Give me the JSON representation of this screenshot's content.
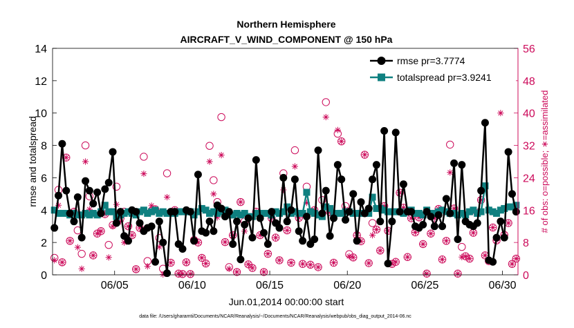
{
  "chart_data": {
    "type": "line",
    "title": "Northern Hemisphere",
    "subtitle": "AIRCRAFT_V_WIND_COMPONENT @ 150 hPa",
    "xlabel": "Jun.01,2014 00:00:00 start",
    "ylabel": "rmse and totalspread",
    "ylabel_right": "# of obs: o=possible; ∗=assimilated",
    "footer": "data file: /Users/gharamti/Documents/NCAR/Reanalysis/~/Documents/NCAR/Reanalysis/webpub/obs_diag_output_2014-06.nc",
    "xlim": [
      1,
      31
    ],
    "ylim": [
      0,
      14
    ],
    "ylim_right": [
      0,
      56
    ],
    "x_ticks": [
      5,
      10,
      15,
      20,
      25,
      30
    ],
    "x_tick_labels": [
      "06/05",
      "06/10",
      "06/15",
      "06/20",
      "06/25",
      "06/30"
    ],
    "y_ticks": [
      0,
      2,
      4,
      6,
      8,
      10,
      12,
      14
    ],
    "y_ticks_right": [
      0,
      8,
      16,
      24,
      32,
      40,
      48,
      56
    ],
    "legend": [
      "rmse pr=3.7774",
      "totalspread pr=3.9241"
    ],
    "colors": {
      "rmse": "#000000",
      "spread": "#0f8080",
      "obs": "#cc0a5a"
    },
    "series": [
      {
        "name": "rmse",
        "x": [
          1.12,
          1.38,
          1.62,
          1.88,
          2.12,
          2.38,
          2.62,
          2.88,
          3.12,
          3.38,
          3.62,
          3.88,
          4.12,
          4.38,
          4.62,
          4.88,
          5.12,
          5.38,
          5.62,
          5.88,
          6.12,
          6.38,
          6.62,
          6.88,
          7.12,
          7.38,
          7.62,
          7.88,
          8.12,
          8.38,
          8.62,
          8.88,
          9.12,
          9.38,
          9.62,
          9.88,
          10.12,
          10.38,
          10.62,
          10.88,
          11.12,
          11.38,
          11.62,
          11.88,
          12.12,
          12.38,
          12.62,
          12.88,
          13.12,
          13.38,
          13.62,
          13.88,
          14.12,
          14.38,
          14.62,
          14.88,
          15.12,
          15.38,
          15.62,
          15.88,
          16.12,
          16.38,
          16.62,
          16.88,
          17.12,
          17.38,
          17.62,
          17.88,
          18.12,
          18.38,
          18.62,
          18.88,
          19.12,
          19.38,
          19.62,
          19.88,
          20.12,
          20.38,
          20.62,
          20.88,
          21.12,
          21.38,
          21.62,
          21.88,
          22.12,
          22.38,
          22.62,
          22.88,
          23.12,
          23.38,
          23.62,
          23.88,
          24.12,
          24.38,
          24.62,
          24.88,
          25.12,
          25.38,
          25.62,
          25.88,
          26.12,
          26.38,
          26.62,
          26.88,
          27.12,
          27.38,
          27.62,
          27.88,
          28.12,
          28.38,
          28.62,
          28.88,
          29.12,
          29.38,
          29.62,
          29.88,
          30.12,
          30.38,
          30.62,
          30.88
        ],
        "values": [
          2.9,
          4.9,
          8.1,
          5.2,
          3.8,
          3.3,
          4.8,
          2.3,
          5.8,
          5.2,
          4.4,
          5.1,
          3.8,
          5.3,
          5.7,
          7.6,
          3.2,
          3.9,
          2.4,
          2.1,
          4.0,
          3.9,
          3.2,
          2.7,
          2.9,
          3.0,
          0.8,
          3.3,
          2.0,
          0.1,
          3.9,
          3.9,
          1.9,
          1.6,
          4.0,
          3.9,
          2.1,
          6.2,
          2.7,
          2.6,
          3.3,
          2.7,
          4.3,
          4.1,
          3.6,
          3.9,
          1.9,
          3.3,
          0.95,
          3.1,
          3.5,
          2.3,
          7.1,
          3.5,
          2.6,
          1.9,
          3.9,
          3.2,
          2.9,
          6.0,
          3.3,
          4.0,
          5.9,
          2.7,
          2.1,
          3.6,
          1.9,
          2.2,
          7.7,
          3.8,
          5.2,
          2.4,
          3.5,
          6.8,
          5.9,
          3.4,
          3.9,
          5.0,
          2.1,
          4.5,
          3.8,
          4.1,
          5.9,
          6.8,
          3.3,
          8.9,
          0.7,
          3.3,
          8.8,
          3.9,
          5.6,
          3.9,
          3.9,
          3.0,
          2.9,
          3.1,
          3.9,
          3.6,
          3.0,
          3.7,
          3.0,
          4.7,
          3.8,
          6.9,
          2.2,
          6.8,
          3.3,
          3.1,
          3.0,
          3.2,
          5.2,
          9.4,
          0.9,
          0.8,
          2.3,
          3.3,
          2.3,
          7.6,
          5.0,
          3.9
        ]
      },
      {
        "name": "totalspread",
        "x": [
          1.12,
          1.38,
          1.62,
          1.88,
          2.12,
          2.38,
          2.62,
          2.88,
          3.12,
          3.38,
          3.62,
          3.88,
          4.12,
          4.38,
          4.62,
          4.88,
          5.12,
          5.38,
          5.62,
          5.88,
          6.12,
          6.38,
          6.62,
          6.88,
          7.12,
          7.38,
          7.62,
          7.88,
          8.12,
          8.38,
          8.62,
          8.88,
          9.12,
          9.38,
          9.62,
          9.88,
          10.12,
          10.38,
          10.62,
          10.88,
          11.12,
          11.38,
          11.62,
          11.88,
          12.12,
          12.38,
          12.62,
          12.88,
          13.12,
          13.38,
          13.62,
          13.88,
          14.12,
          14.38,
          14.62,
          14.88,
          15.12,
          15.38,
          15.62,
          15.88,
          16.12,
          16.38,
          16.62,
          16.88,
          17.12,
          17.38,
          17.62,
          17.88,
          18.12,
          18.38,
          18.62,
          18.88,
          19.12,
          19.38,
          19.62,
          19.88,
          20.12,
          20.38,
          20.62,
          20.88,
          21.12,
          21.38,
          21.62,
          21.88,
          22.12,
          22.38,
          22.62,
          22.88,
          23.12,
          23.38,
          23.62,
          23.88,
          24.12,
          24.38,
          24.62,
          24.88,
          25.12,
          25.38,
          25.62,
          25.88,
          26.12,
          26.38,
          26.62,
          26.88,
          27.12,
          27.38,
          27.62,
          27.88,
          28.12,
          28.38,
          28.62,
          28.88,
          29.12,
          29.38,
          29.62,
          29.88,
          30.12,
          30.38,
          30.62,
          30.88
        ],
        "values": [
          4.0,
          3.8,
          3.8,
          3.8,
          3.7,
          3.8,
          3.7,
          3.7,
          3.8,
          3.7,
          3.8,
          3.7,
          3.9,
          4.3,
          3.9,
          3.9,
          3.6,
          3.7,
          3.8,
          3.9,
          3.8,
          3.7,
          3.9,
          4.0,
          3.8,
          3.9,
          4.0,
          3.8,
          3.9,
          3.8,
          3.8,
          3.8,
          3.9,
          3.9,
          3.9,
          3.9,
          3.7,
          3.9,
          4.1,
          4.0,
          3.8,
          3.9,
          3.8,
          3.9,
          4.0,
          3.7,
          3.7,
          3.8,
          3.7,
          3.8,
          3.6,
          3.6,
          3.8,
          3.7,
          3.8,
          3.8,
          3.7,
          3.9,
          3.8,
          3.9,
          4.2,
          3.8,
          3.9,
          3.8,
          3.8,
          5.1,
          3.9,
          3.8,
          3.7,
          3.6,
          4.2,
          4.1,
          3.8,
          3.8,
          3.8,
          3.9,
          3.9,
          3.8,
          3.8,
          3.8,
          3.8,
          3.8,
          4.8,
          4.1,
          4.1,
          4.0,
          3.9,
          3.9,
          3.9,
          3.9,
          3.8,
          3.9,
          4.0,
          3.8,
          3.8,
          3.7,
          4.0,
          3.8,
          3.8,
          3.9,
          4.0,
          3.9,
          3.8,
          3.8,
          3.7,
          3.8,
          3.7,
          3.9,
          4.0,
          3.8,
          3.9,
          5.5,
          4.0,
          3.9,
          3.8,
          4.0,
          4.1,
          4.2,
          4.2,
          4.3
        ]
      },
      {
        "name": "obs_possible",
        "axis": "right",
        "x": [
          1.12,
          1.38,
          1.62,
          1.88,
          2.12,
          2.38,
          2.62,
          2.88,
          3.12,
          3.38,
          3.62,
          3.88,
          4.12,
          4.38,
          4.62,
          4.88,
          5.12,
          5.38,
          5.62,
          5.88,
          6.12,
          6.38,
          6.62,
          6.88,
          7.12,
          7.38,
          7.62,
          7.88,
          8.12,
          8.38,
          8.62,
          8.88,
          9.12,
          9.38,
          9.62,
          9.88,
          10.12,
          10.38,
          10.62,
          10.88,
          11.12,
          11.38,
          11.62,
          11.88,
          12.12,
          12.38,
          12.62,
          12.88,
          13.12,
          13.38,
          13.62,
          13.88,
          14.12,
          14.38,
          14.62,
          14.88,
          15.12,
          15.38,
          15.62,
          15.88,
          16.12,
          16.38,
          16.62,
          16.88,
          17.12,
          17.38,
          17.62,
          17.88,
          18.12,
          18.38,
          18.62,
          18.88,
          19.12,
          19.38,
          19.62,
          19.88,
          20.12,
          20.38,
          20.62,
          20.88,
          21.12,
          21.38,
          21.62,
          21.88,
          22.12,
          22.38,
          22.62,
          22.88,
          23.12,
          23.38,
          23.62,
          23.88,
          24.12,
          24.38,
          24.62,
          24.88,
          25.12,
          25.38,
          25.62,
          25.88,
          26.12,
          26.38,
          26.62,
          26.88,
          27.12,
          27.38,
          27.62,
          27.88,
          28.12,
          28.38,
          28.62,
          28.88,
          29.12,
          29.38,
          29.62,
          29.88,
          30.12,
          30.38,
          30.62,
          30.88
        ],
        "values": [
          4.2,
          21.0,
          3.1,
          29.0,
          8.4,
          15.6,
          11.0,
          5.2,
          32.0,
          19.4,
          4.8,
          10.2,
          10.8,
          15.0,
          7.4,
          12.3,
          21.8,
          14.0,
          15.6,
          12.0,
          9.8,
          1.4,
          11.6,
          29.2,
          3.4,
          15.8,
          16.2,
          9.1,
          1.5,
          25.1,
          3.0,
          16.0,
          0.3,
          0.2,
          3.1,
          0.2,
          8.6,
          8.0,
          4.2,
          2.8,
          31.9,
          23.4,
          18.0,
          39.0,
          8.1,
          1.9,
          9.8,
          0.7,
          18.0,
          13.2,
          2.6,
          1.7,
          15.6,
          9.8,
          0.7,
          5.2,
          14.0,
          9.2,
          3.6,
          25.1,
          11.0,
          3.0,
          30.8,
          14.1,
          2.7,
          21.8,
          2.5,
          16.0,
          1.9,
          18.5,
          42.7,
          15.5,
          3.0,
          34.9,
          33.0,
          17.0,
          5.1,
          4.3,
          9.8,
          8.3,
          29.7,
          2.9,
          12.8,
          11.2,
          6.0,
          17.0,
          10.9,
          2.7,
          3.2,
          20.3,
          16.6,
          4.4,
          14.0,
          10.5,
          14.2,
          7.6,
          0.3,
          10.2,
          14.0,
          16.3,
          3.8,
          8.4,
          32.2,
          16.4,
          0.3,
          6.9,
          4.6,
          4.0,
          10.4,
          15.3,
          18.5,
          4.8,
          3.4,
          11.7,
          8.5,
          47.8,
          9.9,
          12.8,
          2.7,
          4.0
        ]
      },
      {
        "name": "obs_assimilated",
        "axis": "right",
        "x": [
          1.12,
          1.38,
          1.62,
          1.88,
          2.12,
          2.38,
          2.62,
          2.88,
          3.12,
          3.38,
          3.62,
          3.88,
          4.12,
          4.38,
          4.62,
          4.88,
          5.12,
          5.38,
          5.62,
          5.88,
          6.12,
          6.38,
          6.62,
          6.88,
          7.12,
          7.38,
          7.62,
          7.88,
          8.12,
          8.38,
          8.62,
          8.88,
          9.12,
          9.38,
          9.62,
          9.88,
          10.12,
          10.38,
          10.62,
          10.88,
          11.12,
          11.38,
          11.62,
          11.88,
          12.12,
          12.38,
          12.62,
          12.88,
          13.12,
          13.38,
          13.62,
          13.88,
          14.12,
          14.38,
          14.62,
          14.88,
          15.12,
          15.38,
          15.62,
          15.88,
          16.12,
          16.38,
          16.62,
          16.88,
          17.12,
          17.38,
          17.62,
          17.88,
          18.12,
          18.38,
          18.62,
          18.88,
          19.12,
          19.38,
          19.62,
          19.88,
          20.12,
          20.38,
          20.62,
          20.88,
          21.12,
          21.38,
          21.62,
          21.88,
          22.12,
          22.38,
          22.62,
          22.88,
          23.12,
          23.38,
          23.62,
          23.88,
          24.12,
          24.38,
          24.62,
          24.88,
          25.12,
          25.38,
          25.62,
          25.88,
          26.12,
          26.38,
          26.62,
          26.88,
          27.12,
          27.38,
          27.62,
          27.88,
          28.12,
          28.38,
          28.62,
          28.88,
          29.12,
          29.38,
          29.62,
          29.88,
          30.12,
          30.38,
          30.62,
          30.88
        ],
        "values": [
          3.6,
          17.2,
          3.1,
          29.0,
          8.4,
          15.6,
          6.8,
          1.5,
          28.0,
          16.2,
          4.8,
          10.2,
          10.8,
          15.0,
          4.3,
          12.0,
          17.4,
          13.2,
          8.0,
          12.0,
          9.8,
          1.4,
          11.6,
          25.0,
          2.1,
          17.1,
          16.2,
          6.9,
          0.1,
          19.2,
          3.0,
          16.0,
          0.3,
          0.2,
          3.1,
          0.2,
          8.6,
          8.0,
          4.2,
          2.8,
          28.0,
          20.0,
          14.2,
          29.6,
          8.1,
          1.5,
          9.8,
          0.7,
          18.0,
          10.8,
          2.6,
          1.7,
          15.6,
          9.8,
          0.7,
          5.2,
          14.0,
          9.2,
          3.6,
          21.0,
          11.0,
          3.0,
          26.8,
          14.1,
          2.7,
          17.8,
          2.5,
          16.0,
          1.9,
          14.6,
          39.0,
          15.5,
          3.0,
          35.8,
          33.0,
          16.2,
          4.6,
          4.3,
          9.8,
          8.3,
          29.7,
          2.9,
          9.8,
          11.2,
          6.0,
          17.0,
          10.9,
          2.7,
          3.2,
          20.3,
          16.6,
          4.4,
          14.0,
          10.5,
          14.2,
          7.6,
          0.3,
          10.2,
          14.0,
          16.3,
          3.8,
          8.4,
          25.3,
          16.4,
          0.3,
          4.4,
          4.6,
          4.0,
          10.4,
          15.3,
          18.5,
          4.8,
          3.4,
          11.7,
          8.5,
          40.0,
          9.9,
          12.8,
          2.7,
          4.0
        ]
      }
    ]
  }
}
